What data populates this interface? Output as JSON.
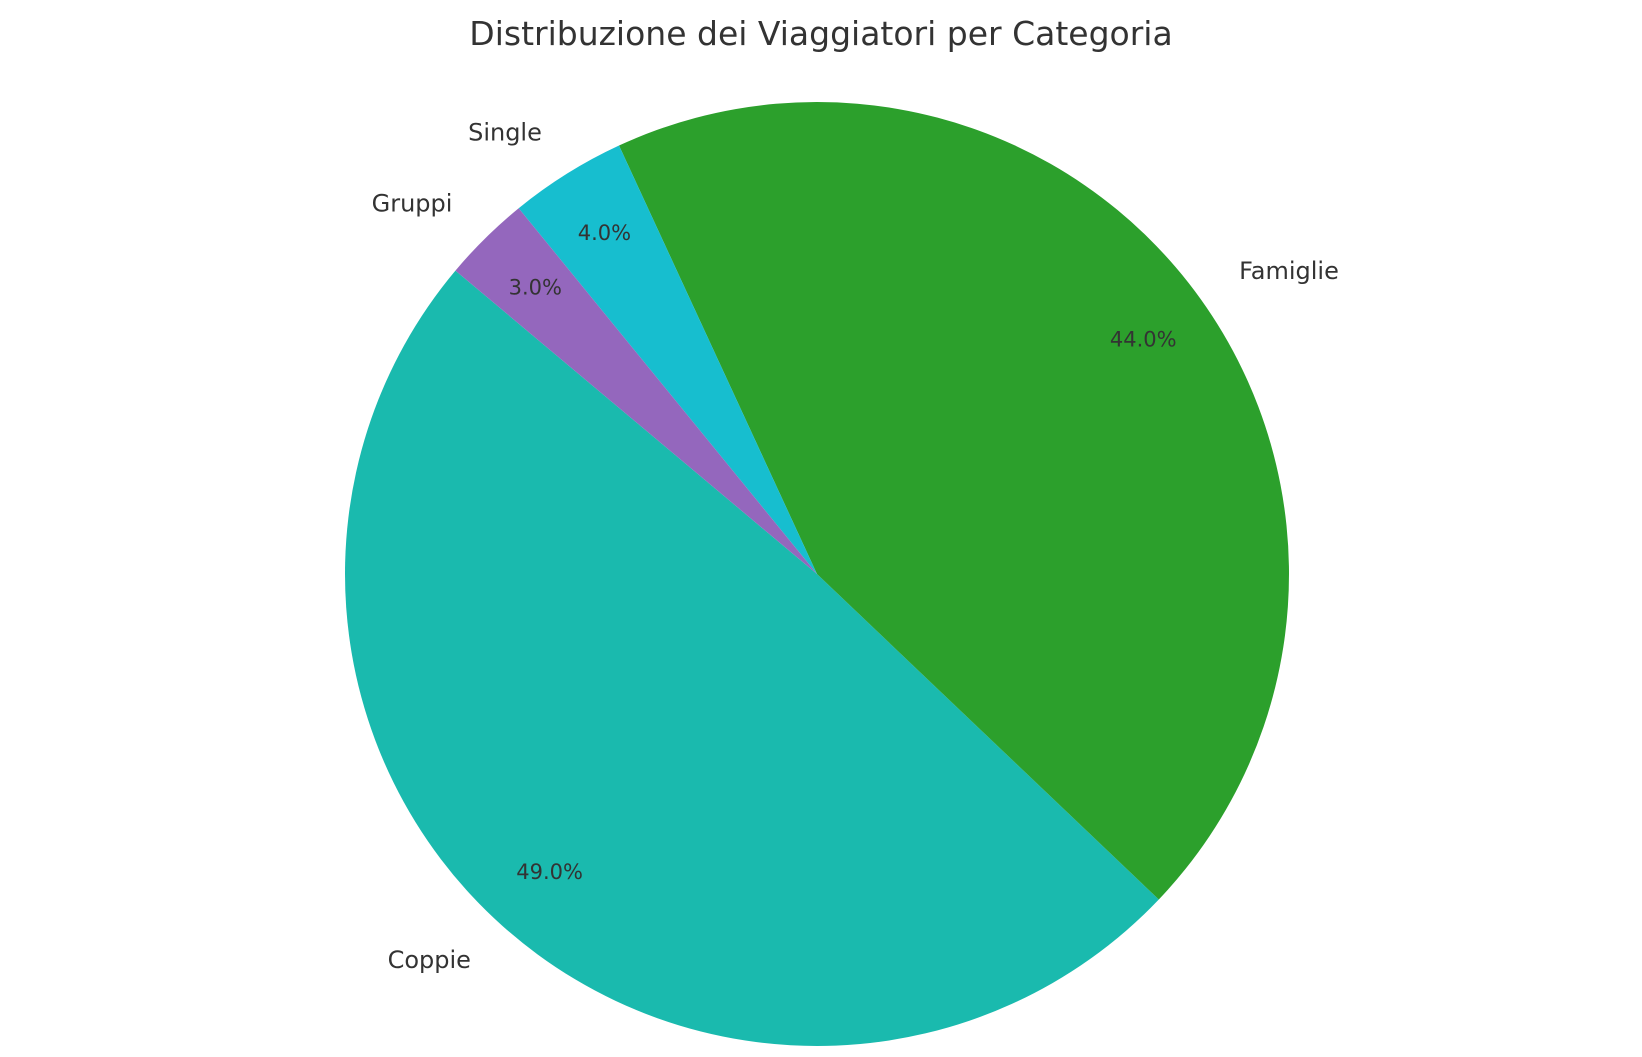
{
  "chart_data": {
    "type": "pie",
    "title": "Distribuzione dei Viaggiatori per Categoria",
    "categories": [
      "Coppie",
      "Famiglie",
      "Single",
      "Gruppi"
    ],
    "values": [
      49.0,
      44.0,
      4.0,
      3.0
    ],
    "value_labels": [
      "49.0%",
      "44.0%",
      "4.0%",
      "3.0%"
    ],
    "colors": [
      "#1abaae",
      "#2ca02c",
      "#17becf",
      "#9467bd"
    ],
    "start_angle_deg": 140,
    "direction": "counterclockwise"
  }
}
